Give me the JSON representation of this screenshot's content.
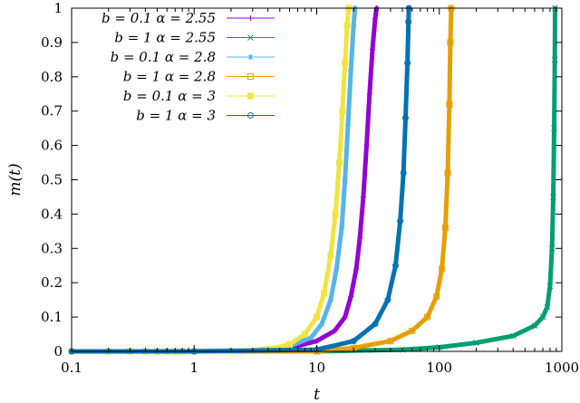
{
  "chart_data": {
    "type": "scatter",
    "xlabel": "t",
    "ylabel": "m(t)",
    "xscale": "log",
    "xlim": [
      0.1,
      1000
    ],
    "ylim": [
      0,
      1
    ],
    "xticks": [
      {
        "value": 0.1,
        "label": "0.1"
      },
      {
        "value": 1,
        "label": "1"
      },
      {
        "value": 10,
        "label": "10"
      },
      {
        "value": 100,
        "label": "100"
      },
      {
        "value": 1000,
        "label": "1000"
      }
    ],
    "yticks": [
      {
        "value": 0,
        "label": "0"
      },
      {
        "value": 0.1,
        "label": "0.1"
      },
      {
        "value": 0.2,
        "label": "0.2"
      },
      {
        "value": 0.3,
        "label": "0.3"
      },
      {
        "value": 0.4,
        "label": "0.4"
      },
      {
        "value": 0.5,
        "label": "0.5"
      },
      {
        "value": 0.6,
        "label": "0.6"
      },
      {
        "value": 0.7,
        "label": "0.7"
      },
      {
        "value": 0.8,
        "label": "0.8"
      },
      {
        "value": 0.9,
        "label": "0.9"
      },
      {
        "value": 1,
        "label": "1"
      }
    ],
    "legend_position": "top-left",
    "grid": false,
    "series": [
      {
        "name": "b = 0.1  α = 2.55",
        "color": "#9400d3",
        "marker": "plus",
        "x": [
          0.1,
          1,
          3,
          6,
          10,
          14,
          17,
          19,
          21,
          22.5,
          24,
          25.5,
          27,
          28.5,
          30,
          30.8
        ],
        "y": [
          0,
          0,
          0.002,
          0.01,
          0.03,
          0.06,
          0.1,
          0.16,
          0.24,
          0.33,
          0.45,
          0.6,
          0.75,
          0.88,
          0.97,
          1
        ]
      },
      {
        "name": "b = 1  α = 2.55",
        "color": "#009e73",
        "marker": "x",
        "x": [
          0.1,
          1,
          10,
          50,
          100,
          200,
          400,
          600,
          700,
          760,
          800,
          830,
          850,
          865,
          875,
          880
        ],
        "y": [
          0,
          0,
          0,
          0.005,
          0.012,
          0.025,
          0.045,
          0.075,
          0.1,
          0.13,
          0.19,
          0.3,
          0.45,
          0.65,
          0.85,
          1
        ]
      },
      {
        "name": "b = 0.1  α = 2.8",
        "color": "#56b4e9",
        "marker": "asterisk",
        "x": [
          0.1,
          1,
          3,
          6,
          9,
          11,
          13,
          14.5,
          16,
          17,
          18,
          19,
          20,
          20.5
        ],
        "y": [
          0,
          0,
          0.003,
          0.015,
          0.04,
          0.08,
          0.15,
          0.24,
          0.36,
          0.5,
          0.66,
          0.82,
          0.95,
          1
        ]
      },
      {
        "name": "b = 1  α = 2.8",
        "color": "#e69f00",
        "marker": "open-square",
        "x": [
          0.1,
          1,
          10,
          20,
          40,
          60,
          80,
          95,
          105,
          112,
          117,
          121,
          123,
          125
        ],
        "y": [
          0,
          0,
          0,
          0.01,
          0.03,
          0.06,
          0.1,
          0.16,
          0.24,
          0.36,
          0.52,
          0.72,
          0.9,
          1
        ]
      },
      {
        "name": "b = 0.1  α = 3",
        "color": "#f0e442",
        "marker": "filled-square",
        "x": [
          0.1,
          0.2,
          0.3,
          0.4,
          0.5,
          0.6,
          0.7,
          0.8,
          1,
          2,
          4,
          6,
          8,
          10,
          11.5,
          13,
          14.2,
          15.3,
          16.2,
          17,
          17.7,
          18.2
        ],
        "y": [
          0,
          0,
          0,
          0,
          0,
          0,
          0,
          0,
          0,
          0.001,
          0.006,
          0.02,
          0.05,
          0.1,
          0.17,
          0.28,
          0.4,
          0.55,
          0.7,
          0.84,
          0.95,
          1
        ]
      },
      {
        "name": "b = 1  α = 3",
        "color": "#0072b2",
        "marker": "open-circle",
        "x": [
          0.1,
          1,
          10,
          20,
          30,
          38,
          44,
          48,
          51,
          53,
          55,
          56,
          56.5
        ],
        "y": [
          0,
          0,
          0.005,
          0.03,
          0.08,
          0.15,
          0.25,
          0.38,
          0.52,
          0.68,
          0.84,
          0.96,
          1
        ]
      }
    ]
  }
}
